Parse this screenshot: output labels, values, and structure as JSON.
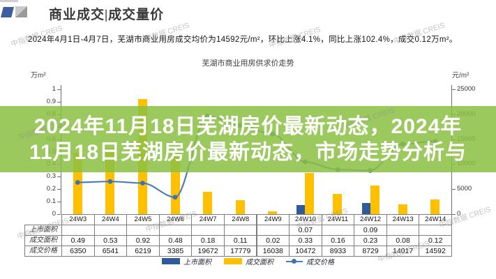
{
  "header": {
    "title": "商业成交|成交量价"
  },
  "summary": "2024年4月1日-4月7日，芜湖市商业用房成交均价为14592元/m²，环比上涨4.1%，同比上涨102.4%，成交0.12万m²。",
  "overlay": {
    "line1": "2024年11月18日芜湖房价最新动态，2024年",
    "line2": "11月18日芜湖房价最新动态，市场走势分析与"
  },
  "watermark": "中指数据 CREIS",
  "chart_data": {
    "type": "bar+line",
    "title": "芜湖市商业用房供求价走势",
    "left_axis": {
      "label": "万m²",
      "min": 0,
      "max": 1,
      "step": 0.1
    },
    "right_axis": {
      "label": "元/m²",
      "min": 0,
      "max": 25000,
      "step": 5000
    },
    "categories": [
      "24W3",
      "24W4",
      "24W5",
      "24W6",
      "24W7",
      "24W8",
      "24W9",
      "24W10",
      "24W11",
      "24W12",
      "24W13",
      "24W14"
    ],
    "series": [
      {
        "name": "上市面积",
        "type": "bar",
        "axis": "left",
        "color": "#2f5b9d",
        "values": [
          null,
          null,
          null,
          null,
          null,
          null,
          null,
          0.07,
          null,
          0.09,
          null,
          null
        ]
      },
      {
        "name": "成交面积",
        "type": "bar",
        "axis": "left",
        "color": "#ffc000",
        "values": [
          0.49,
          0.53,
          0.92,
          0.48,
          0.18,
          0.11,
          0.02,
          0.33,
          0.16,
          0.23,
          0.08,
          0.12
        ]
      },
      {
        "name": "成交价格",
        "type": "line",
        "axis": "right",
        "color": "#4c7dbb",
        "marker_color": "#3e73ae",
        "values": [
          6350,
          6541,
          6219,
          3385,
          19672,
          17779,
          16038,
          10472,
          8933,
          8729,
          14017,
          14592
        ]
      }
    ],
    "table_rows": [
      {
        "label": "上市面积",
        "values": [
          "",
          "",
          "",
          "",
          "",
          "",
          "",
          "0.07",
          "",
          "0.09",
          "",
          ""
        ]
      },
      {
        "label": "成交面积",
        "values": [
          "0.49",
          "0.53",
          "0.92",
          "0.48",
          "0.18",
          "0.11",
          "0.02",
          "0.33",
          "0.16",
          "0.23",
          "0.08",
          "0.12"
        ]
      },
      {
        "label": "成交价格",
        "values": [
          "6350",
          "6541",
          "6219",
          "3385",
          "19672",
          "17779",
          "16038",
          "10472",
          "8933",
          "8729",
          "14017",
          "14592"
        ]
      }
    ],
    "legend": [
      "上市面积",
      "成交面积",
      "成交价格"
    ],
    "grid": false,
    "legend_position": "bottom"
  }
}
